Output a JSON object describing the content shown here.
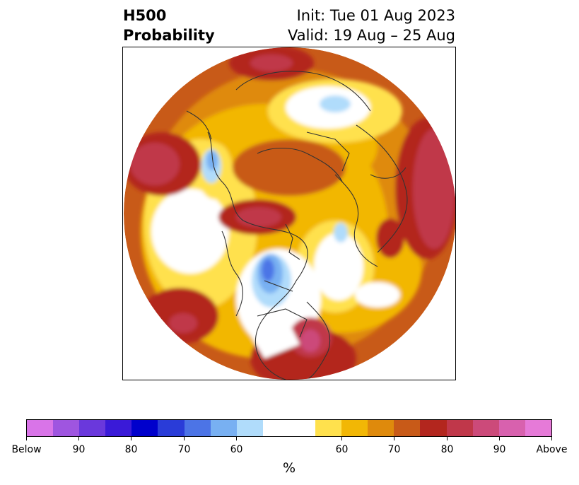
{
  "title": {
    "left_line1": "H500",
    "left_line2": "Probability",
    "right_line1": "Init: Tue 01 Aug 2023",
    "right_line2": "Valid: 19 Aug – 25 Aug"
  },
  "colorbar": {
    "unit": "%",
    "segments": [
      "#d974e8",
      "#9f55e0",
      "#6a38dc",
      "#3a1ad8",
      "#0000cc",
      "#2a3cd8",
      "#4c74e6",
      "#78b0f2",
      "#b0dcfb",
      "#ffffff",
      "#ffe14d",
      "#f2b705",
      "#df8a0c",
      "#c85a18",
      "#b3261e",
      "#c0374a",
      "#cc4a7a",
      "#d861ae",
      "#e67ad8"
    ],
    "tick_labels": [
      "Below",
      "90",
      "80",
      "70",
      "60",
      "60",
      "70",
      "80",
      "90",
      "Above"
    ]
  },
  "map": {
    "colors": {
      "outer_red": "#b3261e",
      "orange_dark": "#c85a18",
      "orange": "#df8a0c",
      "gold": "#f2b705",
      "yellow": "#ffe14d",
      "white": "#ffffff",
      "light_blue": "#b0dcfb",
      "blue": "#78b0f2",
      "mid_blue": "#4c74e6",
      "dark_blue": "#2a3cd8",
      "pink": "#c0374a",
      "magenta": "#cc4a7a",
      "coast": "#333333"
    }
  }
}
